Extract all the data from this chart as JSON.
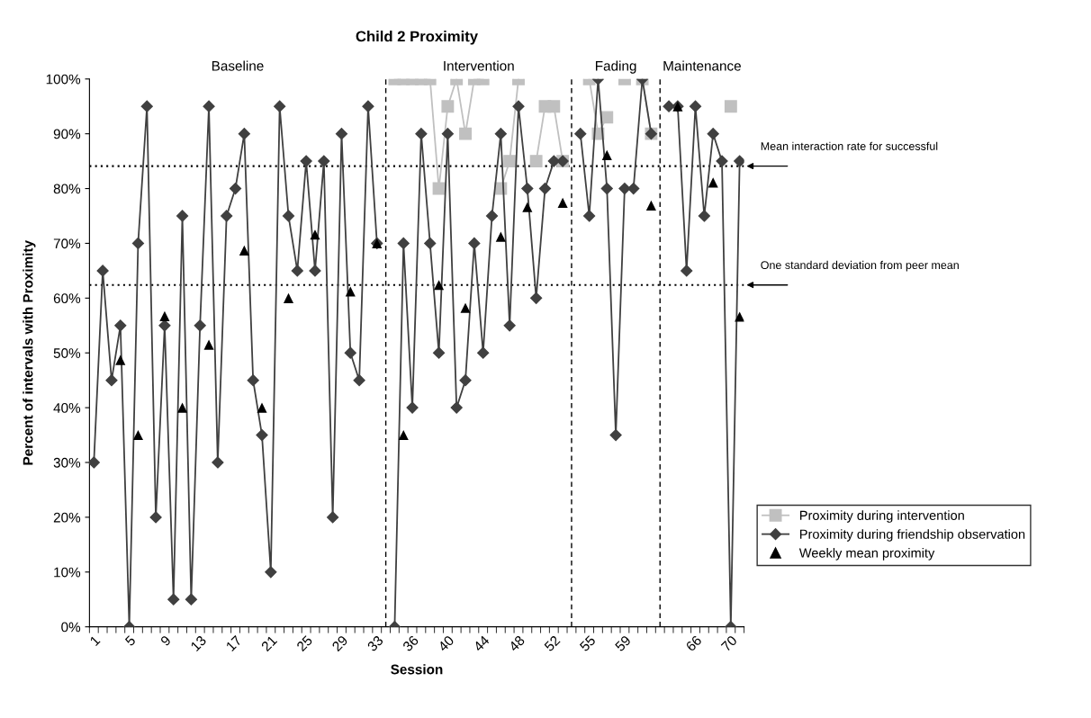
{
  "chart_data": {
    "type": "line",
    "title": "Child 2 Proximity",
    "xlabel": "Session",
    "ylabel": "Percent of intervals with Proximity",
    "categories": [
      "1",
      null,
      null,
      null,
      "5",
      null,
      null,
      null,
      "9",
      null,
      null,
      null,
      "13",
      null,
      null,
      null,
      "17",
      null,
      null,
      null,
      "21",
      null,
      null,
      null,
      "25",
      null,
      null,
      null,
      "29",
      null,
      null,
      null,
      "33",
      null,
      null,
      null,
      "36",
      null,
      null,
      null,
      "40",
      null,
      null,
      null,
      "44",
      null,
      null,
      null,
      "48",
      null,
      null,
      null,
      "52",
      null,
      null,
      null,
      "55",
      null,
      null,
      null,
      "59",
      null,
      null,
      null,
      null,
      null,
      null,
      null,
      "66",
      null,
      null,
      null,
      "70",
      null
    ],
    "ylim": [
      0,
      100
    ],
    "yticks": [
      {
        "value": 0,
        "label": "0%"
      },
      {
        "value": 10,
        "label": "10%"
      },
      {
        "value": 20,
        "label": "20%"
      },
      {
        "value": 30,
        "label": "30%"
      },
      {
        "value": 40,
        "label": "40%"
      },
      {
        "value": 50,
        "label": "50%"
      },
      {
        "value": 60,
        "label": "60%"
      },
      {
        "value": 70,
        "label": "70%"
      },
      {
        "value": 80,
        "label": "80%"
      },
      {
        "value": 90,
        "label": "90%"
      },
      {
        "value": 100,
        "label": "100%"
      }
    ],
    "grid": false,
    "legend": "right",
    "series": [
      {
        "name": "Proximity during intervention",
        "marker": "square",
        "color": "#c0c0c0",
        "values": [
          null,
          null,
          null,
          null,
          null,
          null,
          null,
          null,
          null,
          null,
          null,
          null,
          null,
          null,
          null,
          null,
          null,
          null,
          null,
          null,
          null,
          null,
          null,
          null,
          null,
          null,
          null,
          null,
          null,
          null,
          null,
          null,
          null,
          null,
          100,
          100,
          100,
          100,
          100,
          80,
          95,
          100,
          90,
          100,
          100,
          null,
          80,
          85,
          100,
          null,
          85,
          95,
          95,
          85,
          null,
          null,
          100,
          90,
          93,
          null,
          100,
          null,
          100,
          90,
          null,
          null,
          null,
          null,
          null,
          null,
          null,
          null,
          95,
          null
        ]
      },
      {
        "name": "Proximity during friendship observation",
        "marker": "diamond",
        "color": "#404040",
        "values": [
          30,
          65,
          45,
          55,
          0,
          70,
          95,
          20,
          55,
          5,
          75,
          5,
          55,
          95,
          30,
          75,
          80,
          90,
          45,
          35,
          10,
          95,
          75,
          65,
          85,
          65,
          85,
          20,
          90,
          50,
          45,
          95,
          70,
          null,
          0,
          70,
          40,
          90,
          70,
          50,
          90,
          40,
          45,
          70,
          50,
          75,
          90,
          55,
          95,
          80,
          60,
          80,
          85,
          85,
          null,
          90,
          75,
          100,
          80,
          35,
          80,
          80,
          100,
          90,
          null,
          95,
          95,
          65,
          95,
          75,
          90,
          85,
          0,
          85
        ]
      },
      {
        "name": "Weekly mean proximity",
        "type": "scatter",
        "marker": "triangle",
        "color": "#000000",
        "values": [
          null,
          null,
          null,
          48.7,
          null,
          35,
          null,
          null,
          56.7,
          null,
          40,
          null,
          null,
          51.5,
          null,
          null,
          null,
          68.7,
          null,
          40,
          null,
          null,
          60,
          null,
          null,
          71.6,
          null,
          null,
          null,
          61.2,
          null,
          null,
          70,
          null,
          null,
          35,
          null,
          null,
          null,
          62.4,
          null,
          null,
          58.2,
          null,
          null,
          null,
          71.2,
          null,
          null,
          76.6,
          null,
          null,
          null,
          77.4,
          null,
          null,
          null,
          null,
          86.1,
          null,
          null,
          null,
          null,
          76.9,
          null,
          null,
          95,
          null,
          null,
          null,
          81.1,
          null,
          null,
          56.6
        ]
      }
    ],
    "ref_lines": [
      {
        "axis": "y",
        "value": 84.1,
        "label": "Mean interaction rate for successful",
        "line_style": "dotted",
        "color": "#000000"
      },
      {
        "axis": "y",
        "value": 62.4,
        "label": "One standard deviation from peer mean",
        "line_style": "dotted",
        "color": "#000000"
      }
    ],
    "annotations": [
      "Baseline",
      "Intervention",
      "Fading",
      "Maintenance"
    ]
  }
}
